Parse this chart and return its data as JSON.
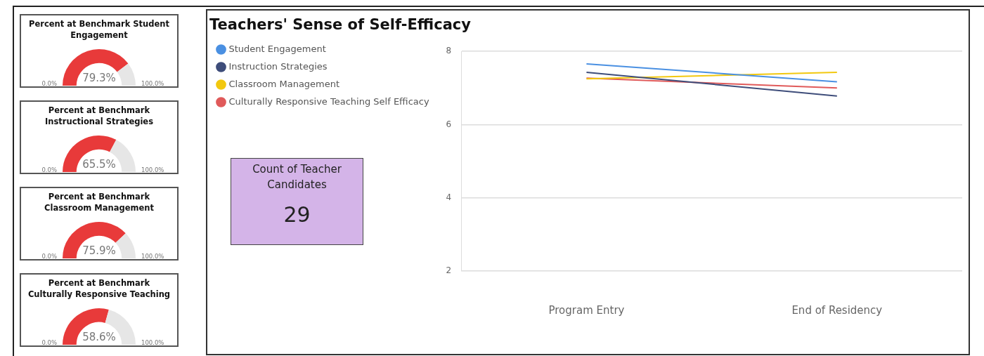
{
  "chart_data": [
    {
      "type": "donut",
      "title": "Percent at Benchmark Student Engagement",
      "categories": [
        null,
        null
      ],
      "values": [
        79.3,
        20.7
      ],
      "colors": [
        "#e83a3a",
        "#e6e6e6"
      ],
      "value_labels": [
        "79.3%",
        null
      ],
      "annotations": [
        "0.0%",
        "100.0%"
      ]
    },
    {
      "type": "donut",
      "title": "Percent at Benchmark Instructional Strategies",
      "categories": [
        null,
        null
      ],
      "values": [
        65.5,
        34.5
      ],
      "colors": [
        "#e83a3a",
        "#e6e6e6"
      ],
      "value_labels": [
        "65.5%",
        null
      ],
      "annotations": [
        "0.0%",
        "100.0%"
      ]
    },
    {
      "type": "donut",
      "title": "Percent at Benchmark Classroom Management",
      "categories": [
        null,
        null
      ],
      "values": [
        75.9,
        24.1
      ],
      "colors": [
        "#e83a3a",
        "#e6e6e6"
      ],
      "value_labels": [
        "75.9%",
        null
      ],
      "annotations": [
        "0.0%",
        "100.0%"
      ]
    },
    {
      "type": "donut",
      "title": "Percent at Benchmark Culturally Responsive Teaching",
      "categories": [
        null,
        null
      ],
      "values": [
        58.6,
        41.4
      ],
      "colors": [
        "#e83a3a",
        "#e6e6e6"
      ],
      "value_labels": [
        "58.6%",
        null
      ],
      "annotations": [
        "0.0%",
        "100.0%"
      ]
    },
    {
      "type": "line",
      "title": "Teachers' Sense of Self-Efficacy",
      "categories": [
        "Program Entry",
        "End of Residency"
      ],
      "series": [
        {
          "name": "Student Engagement",
          "color": "#4a90e2",
          "values": [
            7.66,
            7.17
          ]
        },
        {
          "name": "Instruction Strategies",
          "color": "#3e4d7a",
          "values": [
            7.43,
            6.78
          ]
        },
        {
          "name": "Classroom Management",
          "color": "#f2c80f",
          "values": [
            7.25,
            7.43
          ]
        },
        {
          "name": "Culturally Responsive Teaching Self Efficacy",
          "color": "#e05a5a",
          "values": [
            7.27,
            7.0
          ]
        }
      ],
      "ylim": [
        2,
        8
      ],
      "yticks": [
        2,
        4,
        6,
        8
      ],
      "grid": "y",
      "legend": "top left",
      "marker": "none"
    },
    {
      "type": "other",
      "title": "Count of Teacher Candidates",
      "values": [
        29
      ],
      "data_labels": true
    }
  ]
}
